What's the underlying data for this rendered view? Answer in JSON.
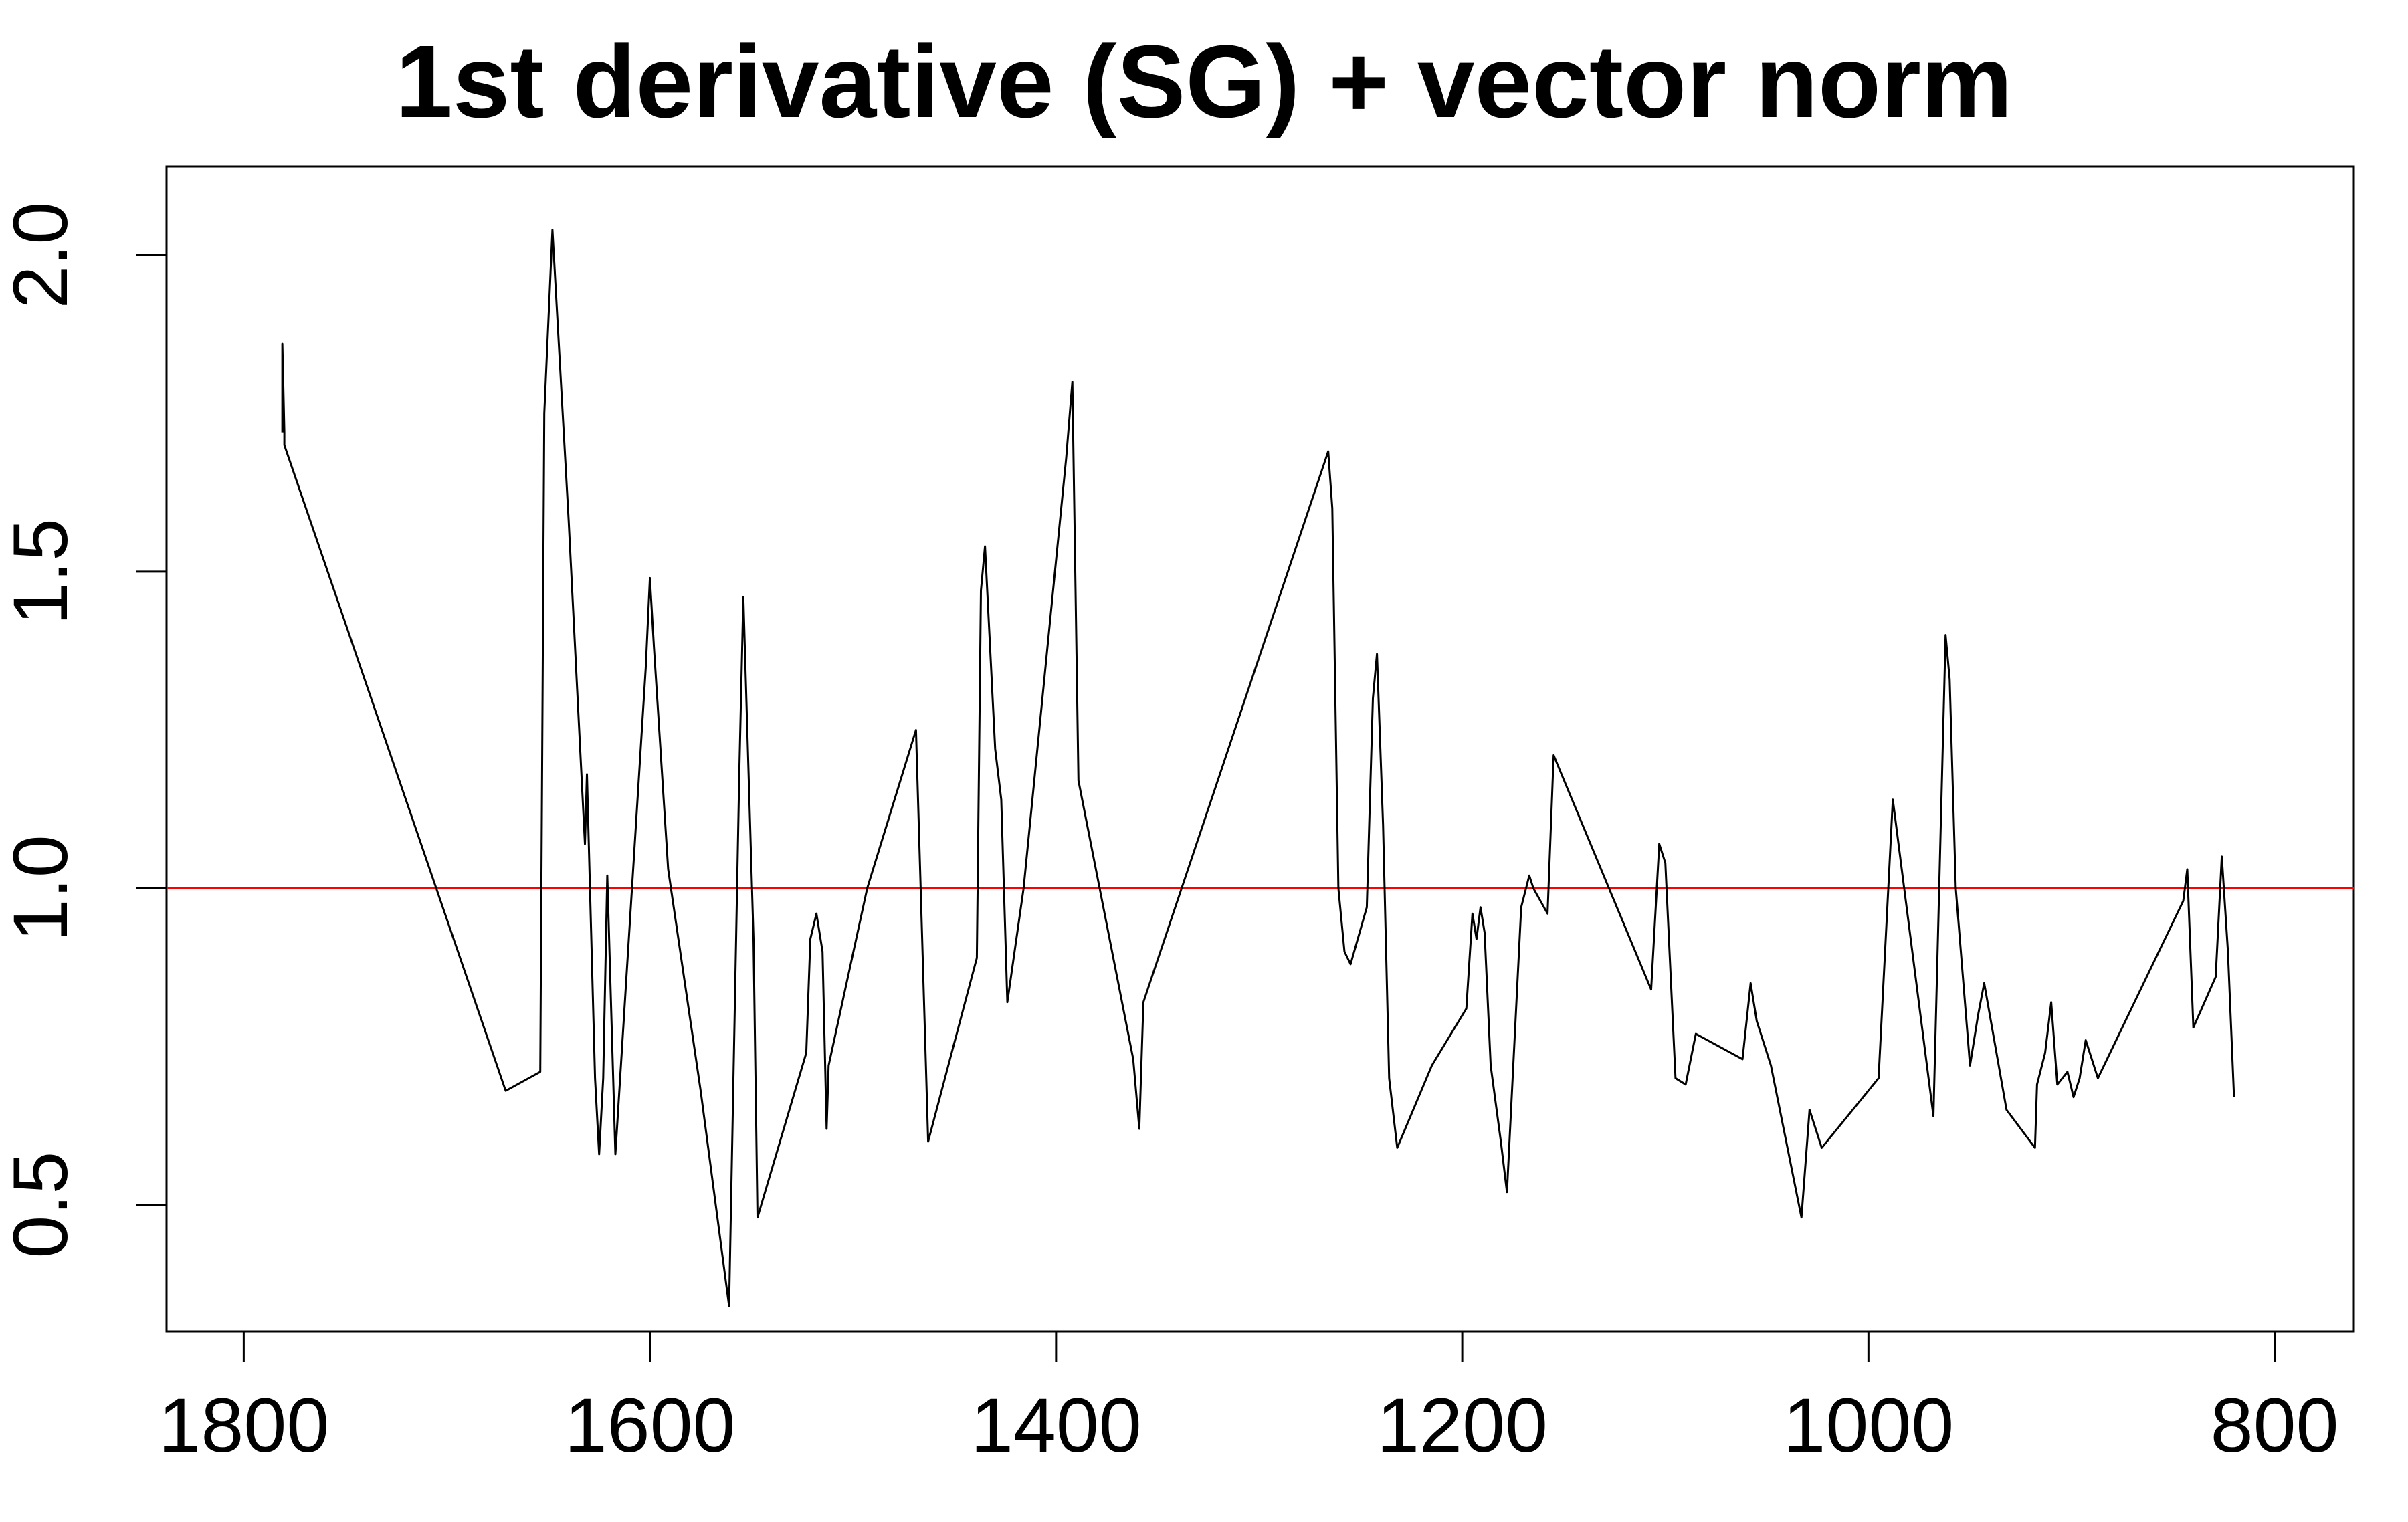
{
  "chart_data": {
    "type": "line",
    "title": "1st derivative (SG) + vector norm",
    "xlabel": "",
    "ylabel": "",
    "x_reversed": true,
    "xlim": [
      1838,
      761
    ],
    "ylim": [
      0.3,
      2.14
    ],
    "x_ticks": [
      1800,
      1600,
      1400,
      1200,
      1000,
      800
    ],
    "x_tick_labels": [
      "1800",
      "1600",
      "1400",
      "1200",
      "1000",
      "800"
    ],
    "y_ticks": [
      0.5,
      1.0,
      1.5,
      2.0
    ],
    "y_tick_labels": [
      "0.5",
      "1.0",
      "1.5",
      "2.0"
    ],
    "grid": false,
    "reference_line": {
      "y": 1.0,
      "color": "#ff0000"
    },
    "series": [
      {
        "color": "#000000",
        "x": [
          1781,
          1781,
          1780,
          1780,
          1671,
          1654,
          1652,
          1648,
          1640,
          1632,
          1631,
          1630,
          1627,
          1625,
          1623,
          1621,
          1617,
          1602,
          1600,
          1598,
          1591,
          1575,
          1561,
          1556,
          1554,
          1549,
          1547,
          1523,
          1521,
          1518,
          1515,
          1513,
          1512,
          1493,
          1469,
          1463,
          1439,
          1437,
          1435,
          1430,
          1427,
          1424,
          1416,
          1395,
          1392,
          1389,
          1362,
          1359,
          1357,
          1266,
          1264,
          1261,
          1258,
          1255,
          1247,
          1244,
          1242,
          1239,
          1236,
          1232,
          1215,
          1198,
          1195,
          1193,
          1191,
          1189,
          1186,
          1181,
          1178,
          1171,
          1167,
          1165,
          1158,
          1155,
          1107,
          1103,
          1100,
          1095,
          1090,
          1085,
          1062,
          1058,
          1055,
          1052,
          1048,
          1033,
          1029,
          1026,
          1023,
          995,
          988,
          982,
          968,
          962,
          960,
          957,
          950,
          946,
          943,
          932,
          918,
          917,
          913,
          910,
          907,
          902,
          899,
          896,
          893,
          887,
          845,
          843,
          840,
          829,
          826,
          823,
          820
        ],
        "y": [
          1.72,
          1.86,
          1.72,
          1.7,
          0.68,
          0.71,
          1.75,
          2.04,
          1.58,
          1.07,
          1.18,
          1.06,
          0.7,
          0.58,
          0.7,
          1.02,
          0.58,
          1.35,
          1.49,
          1.38,
          1.03,
          0.68,
          0.34,
          1.18,
          1.46,
          0.92,
          0.48,
          0.74,
          0.92,
          0.96,
          0.9,
          0.62,
          0.72,
          1.0,
          1.25,
          0.6,
          0.89,
          1.47,
          1.54,
          1.22,
          1.14,
          0.82,
          1.0,
          1.68,
          1.8,
          1.17,
          0.73,
          0.62,
          0.82,
          1.69,
          1.6,
          1.0,
          0.9,
          0.88,
          0.97,
          1.3,
          1.37,
          1.1,
          0.7,
          0.59,
          0.72,
          0.81,
          0.96,
          0.92,
          0.97,
          0.93,
          0.72,
          0.6,
          0.52,
          0.97,
          1.02,
          1.0,
          0.96,
          1.21,
          0.84,
          1.07,
          1.04,
          0.7,
          0.69,
          0.77,
          0.73,
          0.85,
          0.79,
          0.76,
          0.72,
          0.48,
          0.65,
          0.62,
          0.59,
          0.7,
          1.14,
          0.99,
          0.64,
          1.4,
          1.33,
          1.0,
          0.72,
          0.8,
          0.85,
          0.65,
          0.59,
          0.69,
          0.74,
          0.82,
          0.69,
          0.71,
          0.67,
          0.7,
          0.76,
          0.7,
          0.98,
          1.03,
          0.78,
          0.86,
          1.05,
          0.9,
          0.67
        ]
      }
    ]
  }
}
